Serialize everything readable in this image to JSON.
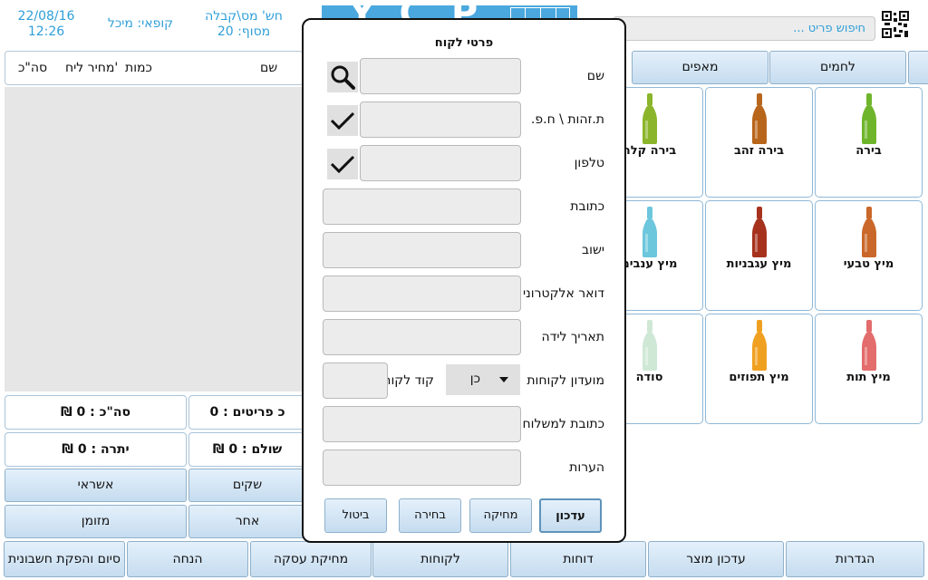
{
  "header": {
    "date": "22/08/16",
    "time": "12:26",
    "cashier": "קופאי: מיכל",
    "invoice": "חש' מס\\קבלה",
    "terminal": "מסוף: 20",
    "search_placeholder": "חיפוש פריט ..."
  },
  "cart": {
    "col_name": "שם",
    "col_qty": "כמות",
    "col_price": "מחיר ליח'",
    "col_total": "סה\"כ"
  },
  "totals": {
    "total": "סה\"כ : 0 ₪",
    "items": "כ פריטים : 0",
    "balance": "יתרה : 0 ₪",
    "paid": "שולם : 0 ₪"
  },
  "payment": {
    "credit": "אשראי",
    "checks": "שקים",
    "cash": "מזומן",
    "other": "אחר"
  },
  "categories": [
    "לחמים",
    "מאפים"
  ],
  "products": [
    {
      "name": "בירה",
      "color": "#6fb52c"
    },
    {
      "name": "בירה זהב",
      "color": "#b8661c"
    },
    {
      "name": "בירה קלה",
      "color": "#8bb52a"
    },
    {
      "name": "מיץ טבעי",
      "color": "#c9682a"
    },
    {
      "name": "מיץ עגבניות",
      "color": "#a6321e"
    },
    {
      "name": "מיץ ענבים",
      "color": "#6cc6dc"
    },
    {
      "name": "מיץ תות",
      "color": "#e36c6c"
    },
    {
      "name": "מיץ תפוזים",
      "color": "#f0a020"
    },
    {
      "name": "סודה",
      "color": "#cfe8d6"
    }
  ],
  "bottom_nav": [
    "סיום והפקת חשבונית",
    "הנחה",
    "מחיקת עסקה",
    "לקוחות",
    "דוחות",
    "עדכון מוצר",
    "הגדרות"
  ],
  "dialog": {
    "title": "פרטי לקוח",
    "fields": {
      "name": "שם",
      "id": "ת.זהות \\ ח.פ.",
      "phone": "טלפון",
      "address": "כתובת",
      "city": "ישוב",
      "email": "דואר אלקטרוני",
      "birthdate": "תאריך לידה",
      "club": "מועדון לקוחות",
      "customer_code": "קוד לקוח",
      "delivery_address": "כתובת למשלוח",
      "notes": "הערות"
    },
    "club_value": "כן",
    "buttons": {
      "update": "עדכון",
      "delete": "מחיקה",
      "select": "בחירה",
      "cancel": "ביטול"
    }
  }
}
